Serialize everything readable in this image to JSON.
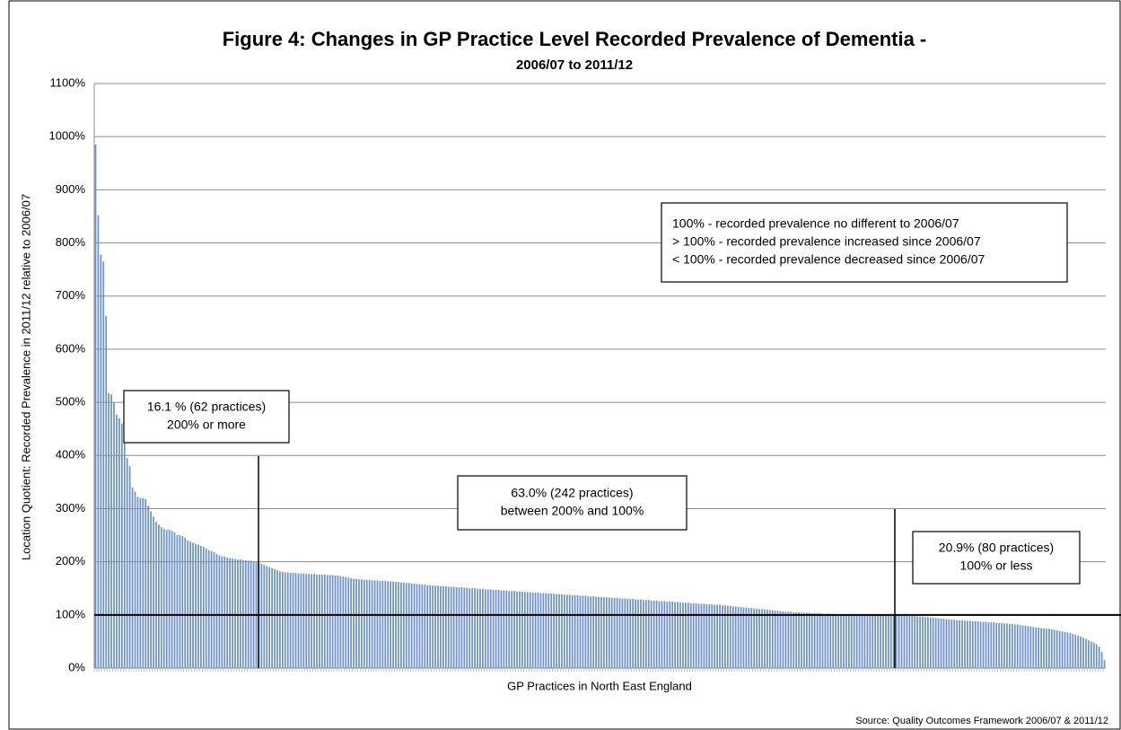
{
  "chart_data": {
    "type": "bar",
    "title": "Figure 4: Changes in GP Practice Level Recorded Prevalence of Dementia -",
    "subtitle": "2006/07 to 2011/12",
    "y_label": "Location Quotient: Recorded Prevalence in 2011/12 relative to 2006/07",
    "x_label": "GP Practices in North East England",
    "source": "Source:  Quality Outcomes Framework 2006/07 & 2011/12",
    "color": "#6f93c8",
    "grid": true,
    "reference_line": 100,
    "ylim": [
      0,
      1100
    ],
    "yticks": [
      {
        "value": 0,
        "label": "0%"
      },
      {
        "value": 100,
        "label": "100%"
      },
      {
        "value": 200,
        "label": "200%"
      },
      {
        "value": 300,
        "label": "300%"
      },
      {
        "value": 400,
        "label": "400%"
      },
      {
        "value": 500,
        "label": "500%"
      },
      {
        "value": 600,
        "label": "600%"
      },
      {
        "value": 700,
        "label": "700%"
      },
      {
        "value": 800,
        "label": "800%"
      },
      {
        "value": 900,
        "label": "900%"
      },
      {
        "value": 1000,
        "label": "1000%"
      },
      {
        "value": 1100,
        "label": "1100%"
      }
    ],
    "annotations": [
      {
        "lines": [
          "100% - recorded prevalence no different  to 2006/07",
          "> 100% - recorded prevalence increased since 2006/07",
          "< 100% - recorded  prevalence decreased since 2006/07"
        ]
      },
      {
        "lines": [
          "16.1 % (62 practices)",
          "200% or more"
        ]
      },
      {
        "lines": [
          "63.0% (242 practices)",
          "between 200% and 100%"
        ]
      },
      {
        "lines": [
          "20.9% (80 practices)",
          "100% or less"
        ]
      }
    ],
    "values": [
      985,
      852,
      778,
      765,
      663,
      517,
      515,
      500,
      477,
      470,
      460,
      440,
      395,
      380,
      340,
      332,
      322,
      320,
      320,
      318,
      305,
      295,
      285,
      275,
      270,
      265,
      262,
      260,
      260,
      258,
      255,
      250,
      250,
      248,
      245,
      240,
      238,
      236,
      234,
      232,
      230,
      228,
      225,
      222,
      220,
      218,
      215,
      212,
      210,
      210,
      208,
      207,
      206,
      205,
      204,
      204,
      203,
      203,
      202,
      202,
      201,
      200,
      198,
      196,
      194,
      192,
      190,
      188,
      186,
      184,
      182,
      181,
      180,
      180,
      179,
      179,
      179,
      178,
      178,
      178,
      177,
      177,
      177,
      177,
      176,
      176,
      176,
      176,
      175,
      175,
      175,
      174,
      174,
      173,
      172,
      171,
      170,
      169,
      168,
      168,
      167,
      167,
      166,
      166,
      166,
      165,
      165,
      165,
      164,
      164,
      164,
      163,
      163,
      163,
      162,
      162,
      161,
      161,
      160,
      160,
      159,
      159,
      158,
      158,
      157,
      157,
      156,
      156,
      155,
      155,
      155,
      154,
      154,
      154,
      153,
      153,
      153,
      152,
      152,
      152,
      151,
      151,
      150,
      150,
      150,
      149,
      149,
      149,
      148,
      148,
      148,
      147,
      147,
      147,
      146,
      146,
      146,
      145,
      145,
      145,
      144,
      144,
      144,
      143,
      143,
      143,
      142,
      142,
      142,
      141,
      141,
      141,
      140,
      140,
      140,
      139,
      139,
      139,
      138,
      138,
      138,
      137,
      137,
      137,
      136,
      136,
      136,
      135,
      135,
      135,
      134,
      134,
      134,
      133,
      133,
      133,
      132,
      132,
      132,
      131,
      131,
      131,
      130,
      130,
      130,
      129,
      129,
      129,
      128,
      128,
      128,
      127,
      127,
      127,
      126,
      126,
      126,
      125,
      125,
      125,
      124,
      124,
      124,
      123,
      123,
      123,
      122,
      122,
      122,
      121,
      121,
      121,
      120,
      120,
      120,
      119,
      119,
      119,
      118,
      118,
      117,
      117,
      116,
      116,
      115,
      115,
      114,
      114,
      113,
      113,
      112,
      112,
      111,
      111,
      110,
      110,
      109,
      109,
      108,
      108,
      107,
      107,
      106,
      106,
      106,
      105,
      105,
      105,
      104,
      104,
      104,
      104,
      103,
      103,
      103,
      103,
      102,
      102,
      102,
      102,
      102,
      101,
      101,
      101,
      101,
      101,
      101,
      101,
      101,
      101,
      101,
      101,
      101,
      101,
      101,
      101,
      101,
      101,
      101,
      101,
      101,
      101,
      101,
      101,
      100,
      100,
      99,
      99,
      99,
      98,
      98,
      98,
      97,
      97,
      97,
      96,
      96,
      95,
      95,
      94,
      94,
      93,
      93,
      92,
      92,
      91,
      91,
      90,
      90,
      90,
      89,
      89,
      89,
      88,
      88,
      88,
      87,
      87,
      87,
      86,
      86,
      86,
      85,
      85,
      85,
      84,
      84,
      83,
      83,
      82,
      82,
      81,
      80,
      80,
      79,
      78,
      77,
      76,
      76,
      75,
      75,
      74,
      74,
      73,
      72,
      71,
      70,
      69,
      68,
      67,
      66,
      64,
      63,
      61,
      59,
      57,
      55,
      52,
      50,
      48,
      45,
      40,
      30,
      15
    ]
  }
}
